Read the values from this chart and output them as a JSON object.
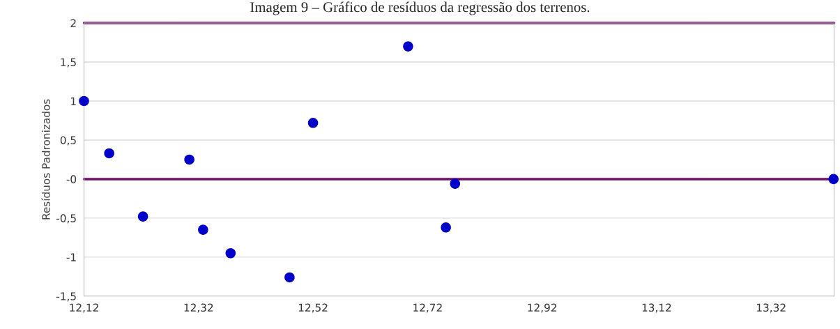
{
  "chart_data": {
    "type": "scatter",
    "title": "Imagem 9 – Gráfico de resíduos da regressão dos terrenos.",
    "ylabel": "Resíduos Padronizados",
    "x": [
      12.12,
      12.164,
      12.223,
      12.304,
      12.328,
      12.376,
      12.479,
      12.52,
      12.686,
      12.752,
      12.768,
      13.429
    ],
    "series": [
      {
        "color": "#0000c8",
        "values": [
          1.0,
          0.33,
          -0.48,
          0.25,
          -0.65,
          -0.95,
          -1.26,
          0.72,
          1.7,
          -0.62,
          -0.06,
          0.0
        ]
      }
    ],
    "xlim": [
      12.12,
      13.43
    ],
    "xticks": [
      {
        "value": 12.12,
        "label": "12,12"
      },
      {
        "value": 12.32,
        "label": "12,32"
      },
      {
        "value": 12.52,
        "label": "12,52"
      },
      {
        "value": 12.72,
        "label": "12,72"
      },
      {
        "value": 12.92,
        "label": "12,92"
      },
      {
        "value": 13.12,
        "label": "13,12"
      },
      {
        "value": 13.32,
        "label": "13,32"
      }
    ],
    "ylim": [
      -1.5,
      2
    ],
    "yticks": [
      {
        "value": -1.5,
        "label": "-1,5"
      },
      {
        "value": -1,
        "label": "-1"
      },
      {
        "value": -0.5,
        "label": "-0,5"
      },
      {
        "value": 0,
        "label": "-0"
      },
      {
        "value": 0.5,
        "label": "0,5"
      },
      {
        "value": 1,
        "label": "1"
      },
      {
        "value": 1.5,
        "label": "1,5"
      },
      2
    ],
    "ref_lines": [
      {
        "axis": "y",
        "value": 2,
        "color": "#6a106a"
      },
      {
        "axis": "y",
        "value": 0,
        "color": "#6a106a"
      }
    ],
    "grid": "y",
    "marker": "circle"
  }
}
